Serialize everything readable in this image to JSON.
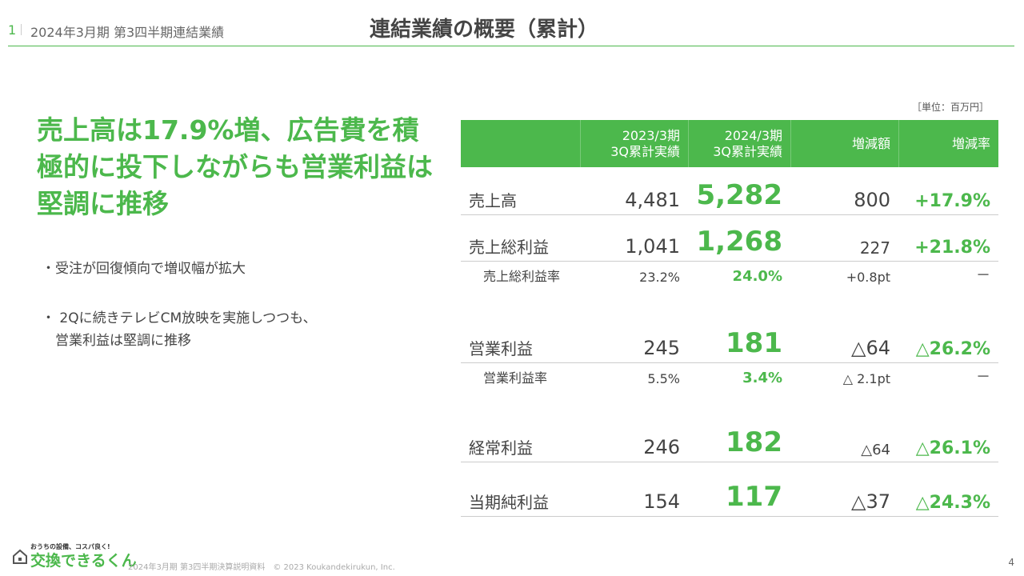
{
  "header": {
    "page_num": "1",
    "subtitle": "2024年3月期 第3四半期連結業績",
    "title": "連結業績の概要（累計）"
  },
  "headline": "売上高は17.9%増、広告費を積極的に投下しながらも営業利益は堅調に推移",
  "bullets": [
    "・受注が回復傾向で増収幅が拡大",
    "・ 2Qに続きテレビCM放映を実施しつつも、",
    "　営業利益は堅調に推移"
  ],
  "table": {
    "unit": "［単位：百万円］",
    "headers": [
      {
        "l1": "2023/3期",
        "l2": "3Q累計実績"
      },
      {
        "l1": "2024/3期",
        "l2": "3Q累計実績"
      },
      {
        "l1": "増減額",
        "l2": ""
      },
      {
        "l1": "増減率",
        "l2": ""
      }
    ],
    "rows": [
      {
        "label": "売上高",
        "prev": "4,481",
        "curr": "5,282",
        "diff": "800",
        "rate": "+17.9%"
      },
      {
        "label": "売上総利益",
        "prev": "1,041",
        "curr": "1,268",
        "diff": "227",
        "rate": "+21.8%"
      },
      {
        "label": "売上総利益率",
        "prev": "23.2%",
        "curr": "24.0%",
        "diff": "+0.8pt",
        "rate": "－"
      },
      {
        "label": "営業利益",
        "prev": "245",
        "curr": "181",
        "diff": "△64",
        "rate": "△26.2%"
      },
      {
        "label": "営業利益率",
        "prev": "5.5%",
        "curr": "3.4%",
        "diff": "△ 2.1pt",
        "rate": "－"
      },
      {
        "label": "経常利益",
        "prev": "246",
        "curr": "182",
        "diff": "△64",
        "rate": "△26.1%"
      },
      {
        "label": "当期純利益",
        "prev": "154",
        "curr": "117",
        "diff": "△37",
        "rate": "△24.3%"
      }
    ]
  },
  "footer": {
    "logo_tagline": "おうちの設備、コスパ良く!",
    "logo_text": "交換できるくん",
    "text": "2024年3月期 第3四半期決算説明資料　© 2023 Koukandekirukun, Inc.",
    "page": "4"
  },
  "colors": {
    "accent": "#4cb84c"
  }
}
